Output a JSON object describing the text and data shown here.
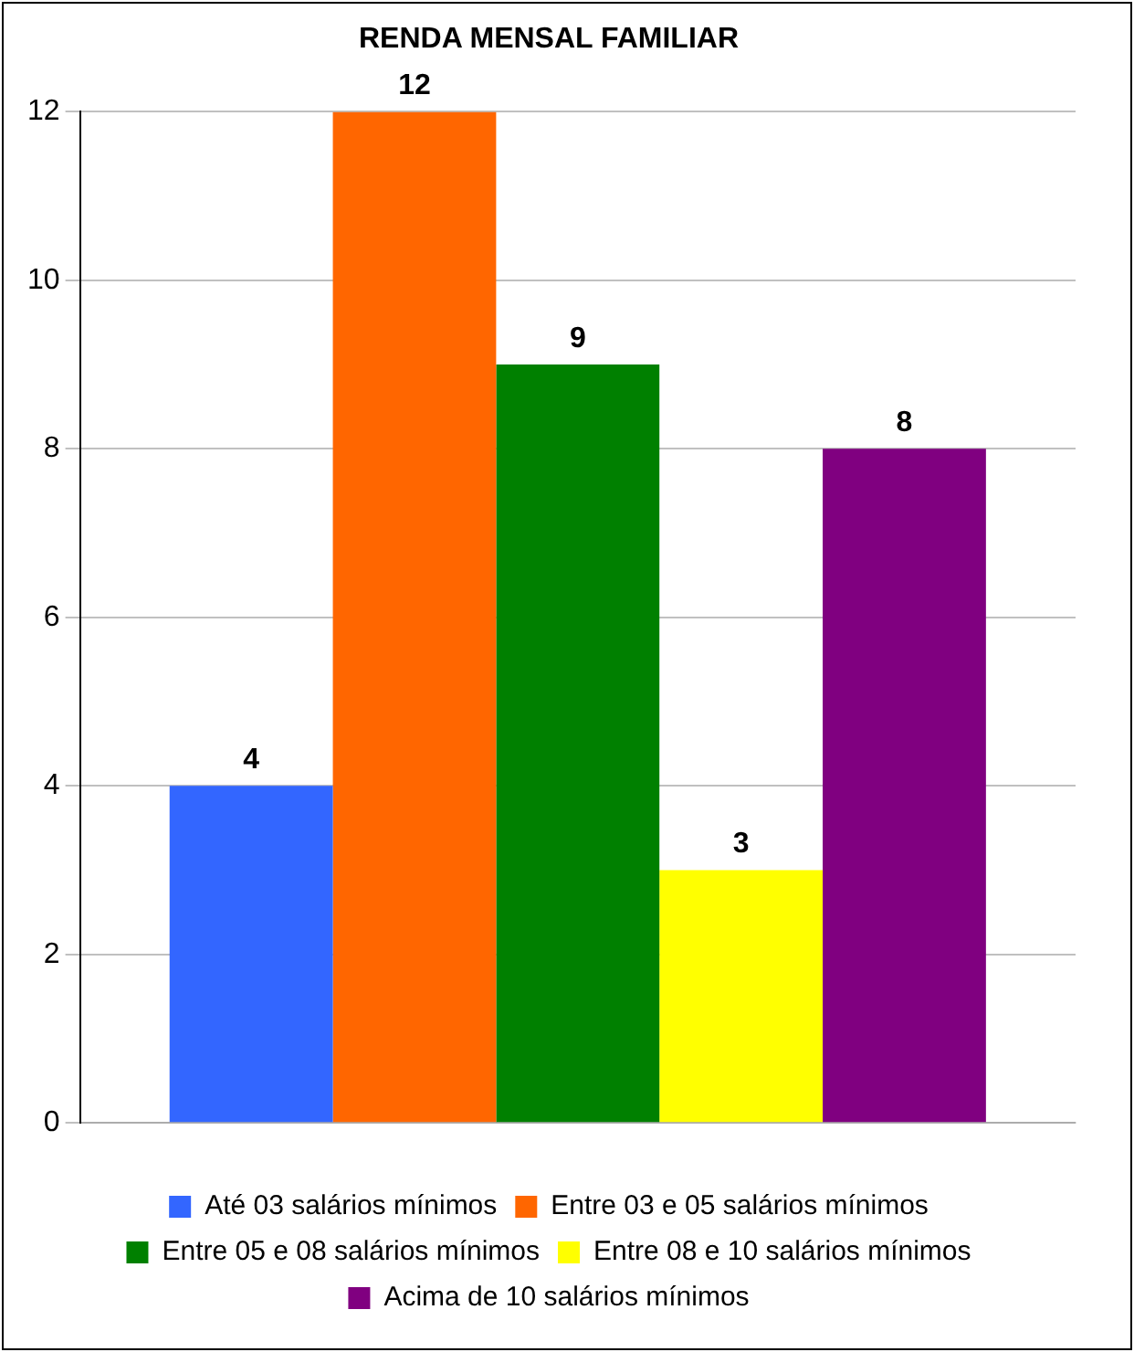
{
  "chart_data": {
    "type": "bar",
    "title": "RENDA MENSAL FAMILIAR",
    "categories": [
      null
    ],
    "series": [
      {
        "name": "Até 03 salários mínimos",
        "color": "#3366ff",
        "values": [
          4
        ]
      },
      {
        "name": "Entre 03 e 05 salários mínimos",
        "color": "#ff6600",
        "values": [
          12
        ]
      },
      {
        "name": "Entre 05 e 08 salários mínimos",
        "color": "#008000",
        "values": [
          9
        ]
      },
      {
        "name": "Entre 08 e 10 salários mínimos",
        "color": "#ffff00",
        "values": [
          3
        ]
      },
      {
        "name": "Acima de 10 salários mínimos",
        "color": "#800080",
        "values": [
          8
        ]
      }
    ],
    "ylim": [
      0,
      12
    ],
    "yticks": [
      0,
      2,
      4,
      6,
      8,
      10,
      12
    ],
    "grid": "y",
    "legend": "bottom",
    "data_labels": true
  }
}
